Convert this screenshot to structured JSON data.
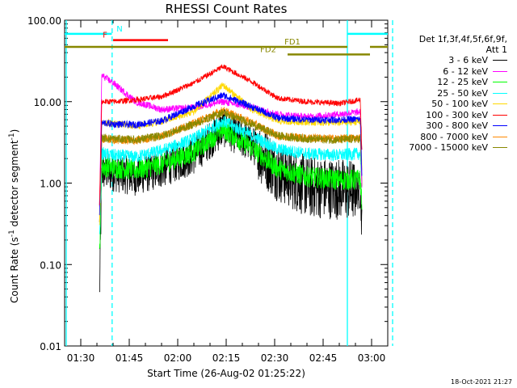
{
  "chart_data": {
    "type": "line",
    "title": "RHESSI Count Rates",
    "xlabel": "Start Time (26-Aug-02 01:25:22)",
    "ylabel_main": "Count Rate (s",
    "ylabel_sup": "-1",
    "ylabel_tail": " detector segment",
    "ylabel_sup2": "-1",
    "ylabel_close": ")",
    "y_scale": "log",
    "ylim": [
      0.01,
      100
    ],
    "xlim_minutes_from_0125": [
      0,
      100
    ],
    "y_ticks": [
      "100.00",
      "10.00",
      "1.00",
      "0.10",
      "0.01"
    ],
    "x_ticks": [
      "01:30",
      "01:45",
      "02:00",
      "02:15",
      "02:30",
      "02:45",
      "03:00"
    ],
    "legend_header": [
      "Det 1f,3f,4f,5f,6f,9f,",
      "Att 1"
    ],
    "series": [
      {
        "name": "3 - 6 keV",
        "color": "#000000",
        "profile": [
          0.04,
          1.4,
          1.35,
          1.2,
          1.5,
          2.2,
          4.8,
          3.0,
          1.4,
          0.9,
          0.85,
          0.8,
          0.3
        ]
      },
      {
        "name": "6 - 12 keV",
        "color": "#ff00ff",
        "profile": [
          0.5,
          21,
          17,
          10,
          8,
          8.5,
          10,
          8.5,
          7,
          6.5,
          7,
          7.5,
          0.9
        ]
      },
      {
        "name": "12 - 25 keV",
        "color": "#00ff00",
        "profile": [
          0.13,
          1.6,
          1.55,
          1.45,
          1.7,
          2.4,
          4.6,
          2.7,
          1.5,
          1.2,
          1.1,
          1.1,
          0.6
        ]
      },
      {
        "name": "25 - 50 keV",
        "color": "#00ffff",
        "profile": [
          0.2,
          2.3,
          2.2,
          2.1,
          2.5,
          3.5,
          5.8,
          3.8,
          2.6,
          2.3,
          2.2,
          2.3,
          0.9
        ]
      },
      {
        "name": "50 - 100 keV",
        "color": "#ffd800",
        "profile": [
          0.3,
          5.6,
          5.4,
          5.0,
          5.7,
          7.5,
          16,
          8.0,
          5.8,
          5.6,
          5.5,
          5.7,
          1.5
        ]
      },
      {
        "name": "100 - 300 keV",
        "color": "#ff0000",
        "profile": [
          0.5,
          10,
          10,
          10.5,
          11.5,
          17,
          27,
          17.5,
          11,
          10,
          9.5,
          10.5,
          2.5
        ]
      },
      {
        "name": "300 - 800 keV",
        "color": "#0000ff",
        "profile": [
          0.4,
          5.5,
          5.3,
          5.2,
          5.8,
          8.8,
          12,
          8.6,
          6.3,
          6.0,
          6.0,
          6.1,
          1.3
        ]
      },
      {
        "name": "800 - 7000 keV",
        "color": "#ff8800",
        "profile": [
          0.3,
          3.5,
          3.4,
          3.3,
          3.8,
          5.4,
          7.8,
          5.5,
          3.8,
          3.6,
          3.5,
          3.6,
          1.0
        ]
      },
      {
        "name": "7000 - 15000 keV",
        "color": "#888800",
        "profile": [
          0.3,
          3.6,
          3.5,
          3.4,
          3.8,
          5.3,
          7.4,
          5.3,
          3.8,
          3.5,
          3.4,
          3.5,
          1.0
        ]
      }
    ],
    "profile_times_minutes": [
      10.8,
      11.5,
      15,
      22,
      30,
      40,
      49,
      58,
      66,
      75,
      85,
      91.5,
      92
    ],
    "flags": [
      {
        "label": "N",
        "color": "#00ffff",
        "level": 68,
        "start_min": 0,
        "end_min": 14.6,
        "label_min": 17
      },
      {
        "label": "N",
        "color": "#00ffff",
        "level": 68,
        "start_min": 87.5,
        "end_min": 100,
        "label_min": null
      },
      {
        "label": "F",
        "color": "#ff0000",
        "level": 57,
        "start_min": 15,
        "end_min": 32,
        "label_min": 12.5
      },
      {
        "label": "FD1",
        "color": "#888800",
        "level": 47,
        "start_min": 0,
        "end_min": 87.5,
        "label_min": 70.5
      },
      {
        "label": "FD2",
        "color": "#888800",
        "level": 38,
        "start_min": 69,
        "end_min": 94.5,
        "label_min": 63
      },
      {
        "label": "",
        "color": "#888800",
        "level": 47,
        "start_min": 94.5,
        "end_min": 100,
        "label_min": null
      }
    ],
    "vlines": [
      {
        "minute": 0.5,
        "color": "#00ffff",
        "style": "solid"
      },
      {
        "minute": 14.7,
        "color": "#00ffff",
        "style": "dashed"
      },
      {
        "minute": 87.5,
        "color": "#00ffff",
        "style": "solid"
      },
      {
        "minute": 101.5,
        "color": "#00ffff",
        "style": "dashed"
      }
    ]
  },
  "footer": "18-Oct-2021 21:27"
}
